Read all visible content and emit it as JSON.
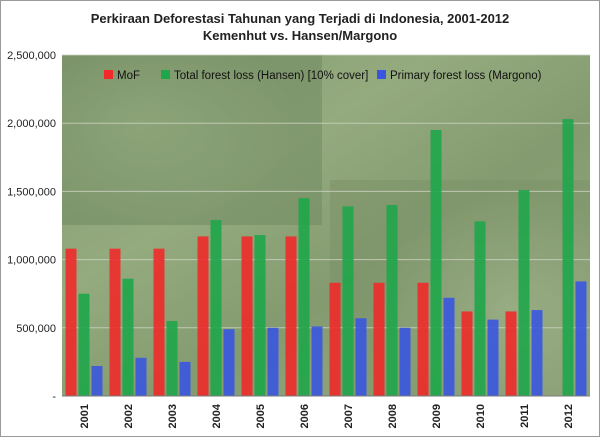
{
  "chart_data": {
    "type": "bar",
    "title": "Perkiraan Deforestasi Tahunan yang Terjadi di Indonesia, 2001-2012",
    "subtitle": "Kemenhut vs. Hansen/Margono",
    "xlabel": "",
    "ylabel": "",
    "ylim": [
      0,
      2500000
    ],
    "y_ticks": [
      "-",
      "500,000",
      "1,000,000",
      "1,500,000",
      "2,000,000",
      "2,500,000"
    ],
    "grid": true,
    "legend_position": "top",
    "categories": [
      "2001",
      "2002",
      "2003",
      "2004",
      "2005",
      "2006",
      "2007",
      "2008",
      "2009",
      "2010",
      "2011",
      "2012"
    ],
    "series": [
      {
        "name": "MoF",
        "color": "#f02a2a",
        "values": [
          1080000,
          1080000,
          1080000,
          1170000,
          1170000,
          1170000,
          830000,
          830000,
          830000,
          620000,
          620000,
          null
        ]
      },
      {
        "name": "Total forest loss (Hansen) [10% cover]",
        "color": "#1ea64a",
        "values": [
          750000,
          860000,
          550000,
          1290000,
          1180000,
          1450000,
          1390000,
          1400000,
          1950000,
          1280000,
          1510000,
          2030000
        ]
      },
      {
        "name": "Primary forest loss (Margono)",
        "color": "#3a56e0",
        "values": [
          220000,
          280000,
          250000,
          490000,
          500000,
          510000,
          570000,
          500000,
          720000,
          560000,
          630000,
          840000
        ]
      }
    ]
  }
}
